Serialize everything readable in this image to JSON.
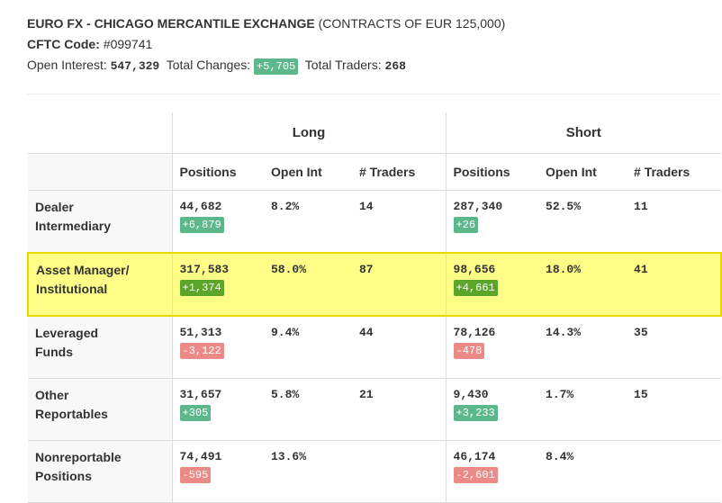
{
  "header": {
    "title": "EURO FX - CHICAGO MERCANTILE EXCHANGE",
    "subtitle": "(CONTRACTS OF EUR 125,000)",
    "cftc_label": "CFTC Code:",
    "cftc_code": "#099741",
    "open_interest_label": "Open Interest:",
    "open_interest": "547,329",
    "total_changes_label": "Total Changes:",
    "total_changes": "+5,705",
    "total_traders_label": "Total Traders:",
    "total_traders": "268"
  },
  "table": {
    "groups": [
      "Long",
      "Short"
    ],
    "columns": [
      "Positions",
      "Open Int",
      "# Traders",
      "Positions",
      "Open Int",
      "# Traders"
    ],
    "rows": [
      {
        "label": [
          "Dealer",
          "Intermediary"
        ],
        "long": {
          "positions": "44,682",
          "change": "+6,879",
          "open_int": "8.2%",
          "traders": "14"
        },
        "short": {
          "positions": "287,340",
          "change": "+26",
          "open_int": "52.5%",
          "traders": "11"
        }
      },
      {
        "label": [
          "Asset Manager/",
          "Institutional"
        ],
        "long": {
          "positions": "317,583",
          "change": "+1,374",
          "open_int": "58.0%",
          "traders": "87"
        },
        "short": {
          "positions": "98,656",
          "change": "+4,661",
          "open_int": "18.0%",
          "traders": "41"
        }
      },
      {
        "label": [
          "Leveraged",
          "Funds"
        ],
        "long": {
          "positions": "51,313",
          "change": "-3,122",
          "open_int": "9.4%",
          "traders": "44"
        },
        "short": {
          "positions": "78,126",
          "change": "-478",
          "open_int": "14.3%",
          "traders": "35"
        }
      },
      {
        "label": [
          "Other",
          "Reportables"
        ],
        "long": {
          "positions": "31,657",
          "change": "+305",
          "open_int": "5.8%",
          "traders": "21"
        },
        "short": {
          "positions": "9,430",
          "change": "+3,233",
          "open_int": "1.7%",
          "traders": "15"
        }
      },
      {
        "label": [
          "Nonreportable",
          "Positions"
        ],
        "long": {
          "positions": "74,491",
          "change": "-595",
          "open_int": "13.6%"
        },
        "short": {
          "positions": "46,174",
          "change": "-2,601",
          "open_int": "8.4%"
        }
      }
    ]
  }
}
